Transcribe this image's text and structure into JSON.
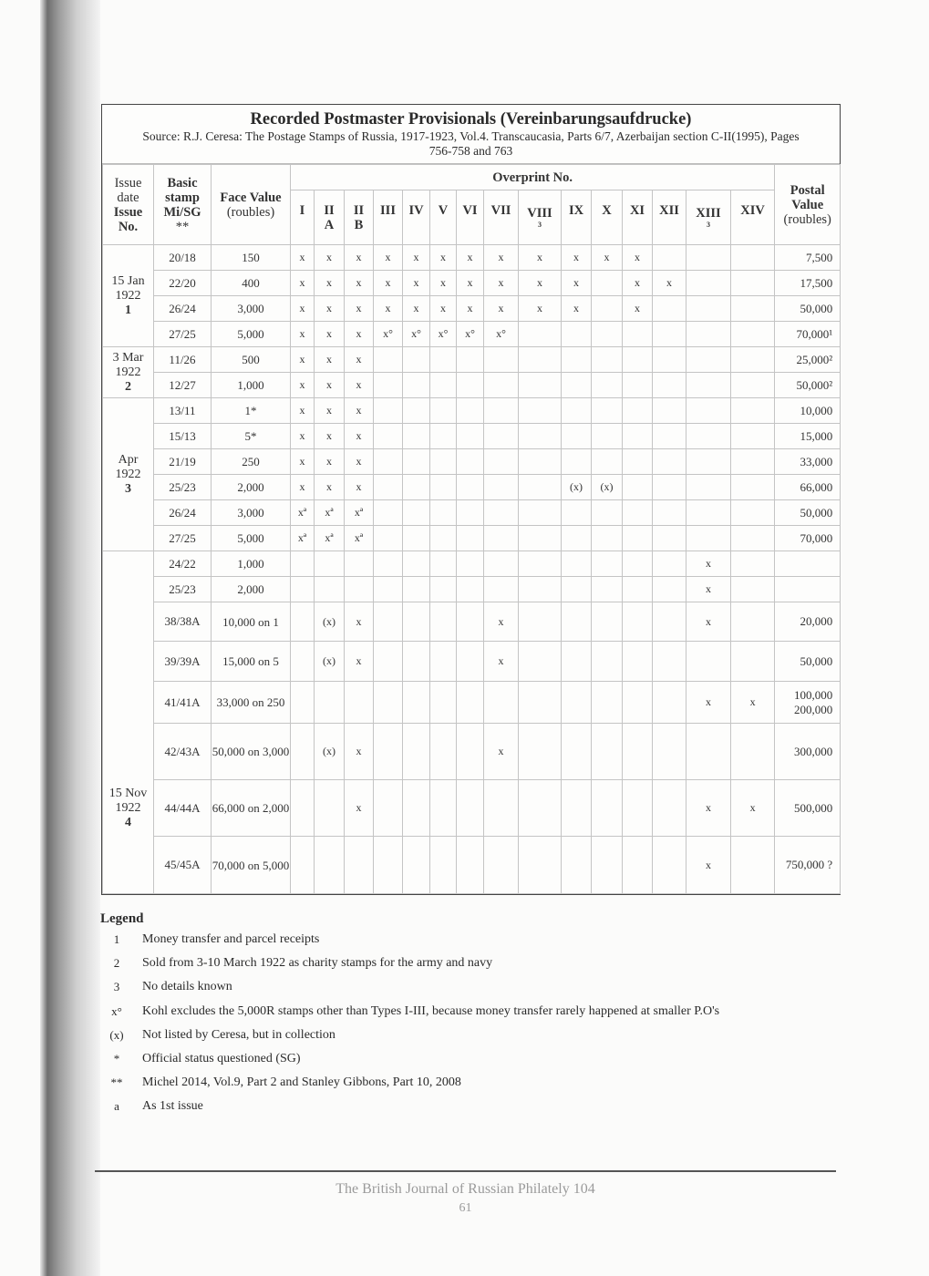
{
  "title": "Recorded Postmaster Provisionals (Vereinbarungsaufdrucke)",
  "source": "Source: R.J. Ceresa: The Postage Stamps of Russia, 1917-1923, Vol.4. Transcaucasia, Parts 6/7, Azerbaijan section C-II(1995), Pages 756-758 and 763",
  "headers": {
    "issue_date": "Issue date",
    "issue_no": "Issue No.",
    "basic_stamp": "Basic stamp Mi/SG",
    "basic_stamp_note": "**",
    "face_value": "Face Value",
    "face_unit": "(roubles)",
    "overprint": "Overprint No.",
    "postal_value": "Postal Value",
    "postal_unit": "(roubles)",
    "overprint_cols": [
      {
        "label": "I"
      },
      {
        "label": "II",
        "sub": "A"
      },
      {
        "label": "II",
        "sub": "B"
      },
      {
        "label": "III"
      },
      {
        "label": "IV"
      },
      {
        "label": "V"
      },
      {
        "label": "VI"
      },
      {
        "label": "VII"
      },
      {
        "label": "VIII",
        "note": "3"
      },
      {
        "label": "IX"
      },
      {
        "label": "X"
      },
      {
        "label": "XI"
      },
      {
        "label": "XII"
      },
      {
        "label": "XIII",
        "note": "3"
      },
      {
        "label": "XIV"
      }
    ]
  },
  "groups": [
    {
      "date": "15 Jan",
      "year": "1922",
      "no": "1",
      "rows": [
        {
          "stamp": "20/18",
          "face": "150",
          "marks": [
            "x",
            "x",
            "x",
            "x",
            "x",
            "x",
            "x",
            "x",
            "x",
            "x",
            "x",
            "x",
            "",
            "",
            ""
          ],
          "postal": "7,500"
        },
        {
          "stamp": "22/20",
          "face": "400",
          "marks": [
            "x",
            "x",
            "x",
            "x",
            "x",
            "x",
            "x",
            "x",
            "x",
            "x",
            "",
            "x",
            "x",
            "",
            ""
          ],
          "postal": "17,500"
        },
        {
          "stamp": "26/24",
          "face": "3,000",
          "marks": [
            "x",
            "x",
            "x",
            "x",
            "x",
            "x",
            "x",
            "x",
            "x",
            "x",
            "",
            "x",
            "",
            "",
            ""
          ],
          "postal": "50,000"
        },
        {
          "stamp": "27/25",
          "face": "5,000",
          "marks": [
            "x",
            "x",
            "x",
            "x°",
            "x°",
            "x°",
            "x°",
            "x°",
            "",
            "",
            "",
            "",
            "",
            "",
            ""
          ],
          "postal": "70,000¹"
        }
      ]
    },
    {
      "date": "3 Mar",
      "year": "1922",
      "no": "2",
      "rows": [
        {
          "stamp": "11/26",
          "face": "500",
          "marks": [
            "x",
            "x",
            "x",
            "",
            "",
            "",
            "",
            "",
            "",
            "",
            "",
            "",
            "",
            "",
            ""
          ],
          "postal": "25,000²"
        },
        {
          "stamp": "12/27",
          "face": "1,000",
          "marks": [
            "x",
            "x",
            "x",
            "",
            "",
            "",
            "",
            "",
            "",
            "",
            "",
            "",
            "",
            "",
            ""
          ],
          "postal": "50,000²"
        }
      ]
    },
    {
      "date": "Apr",
      "year": "1922",
      "no": "3",
      "rows": [
        {
          "stamp": "13/11",
          "face": "1*",
          "marks": [
            "x",
            "x",
            "x",
            "",
            "",
            "",
            "",
            "",
            "",
            "",
            "",
            "",
            "",
            "",
            ""
          ],
          "postal": "10,000"
        },
        {
          "stamp": "15/13",
          "face": "5*",
          "marks": [
            "x",
            "x",
            "x",
            "",
            "",
            "",
            "",
            "",
            "",
            "",
            "",
            "",
            "",
            "",
            ""
          ],
          "postal": "15,000"
        },
        {
          "stamp": "21/19",
          "face": "250",
          "marks": [
            "x",
            "x",
            "x",
            "",
            "",
            "",
            "",
            "",
            "",
            "",
            "",
            "",
            "",
            "",
            ""
          ],
          "postal": "33,000"
        },
        {
          "stamp": "25/23",
          "face": "2,000",
          "marks": [
            "x",
            "x",
            "x",
            "",
            "",
            "",
            "",
            "",
            "",
            "(x)",
            "(x)",
            "",
            "",
            "",
            ""
          ],
          "postal": "66,000"
        },
        {
          "stamp": "26/24",
          "face": "3,000",
          "marks": [
            "xª",
            "xª",
            "xª",
            "",
            "",
            "",
            "",
            "",
            "",
            "",
            "",
            "",
            "",
            "",
            ""
          ],
          "postal": "50,000"
        },
        {
          "stamp": "27/25",
          "face": "5,000",
          "marks": [
            "xª",
            "xª",
            "xª",
            "",
            "",
            "",
            "",
            "",
            "",
            "",
            "",
            "",
            "",
            "",
            ""
          ],
          "postal": "70,000"
        }
      ]
    },
    {
      "date": "15 Nov",
      "year": "1922",
      "no": "4",
      "rows": [
        {
          "stamp": "24/22",
          "face": "1,000",
          "marks": [
            "",
            "",
            "",
            "",
            "",
            "",
            "",
            "",
            "",
            "",
            "",
            "",
            "",
            "x",
            ""
          ],
          "postal": ""
        },
        {
          "stamp": "25/23",
          "face": "2,000",
          "marks": [
            "",
            "",
            "",
            "",
            "",
            "",
            "",
            "",
            "",
            "",
            "",
            "",
            "",
            "x",
            ""
          ],
          "postal": ""
        },
        {
          "stamp": "38/38A",
          "face": "10,000 on 1",
          "marks": [
            "",
            "(x)",
            "x",
            "",
            "",
            "",
            "",
            "x",
            "",
            "",
            "",
            "",
            "",
            "x",
            ""
          ],
          "postal": "20,000"
        },
        {
          "stamp": "39/39A",
          "face": "15,000 on 5",
          "marks": [
            "",
            "(x)",
            "x",
            "",
            "",
            "",
            "",
            "x",
            "",
            "",
            "",
            "",
            "",
            "",
            ""
          ],
          "postal": "50,000"
        },
        {
          "stamp": "41/41A",
          "face": "33,000 on 250",
          "marks": [
            "",
            "",
            "",
            "",
            "",
            "",
            "",
            "",
            "",
            "",
            "",
            "",
            "",
            "x",
            "x"
          ],
          "postal": "100,000 200,000"
        },
        {
          "stamp": "42/43A",
          "face": "50,000 on 3,000",
          "marks": [
            "",
            "(x)",
            "x",
            "",
            "",
            "",
            "",
            "x",
            "",
            "",
            "",
            "",
            "",
            "",
            ""
          ],
          "postal": "300,000"
        },
        {
          "stamp": "44/44A",
          "face": "66,000 on 2,000",
          "marks": [
            "",
            "",
            "x",
            "",
            "",
            "",
            "",
            "",
            "",
            "",
            "",
            "",
            "",
            "x",
            "x"
          ],
          "postal": "500,000"
        },
        {
          "stamp": "45/45A",
          "face": "70,000 on 5,000",
          "marks": [
            "",
            "",
            "",
            "",
            "",
            "",
            "",
            "",
            "",
            "",
            "",
            "",
            "",
            "x",
            ""
          ],
          "postal": "750,000 ?"
        }
      ]
    }
  ],
  "legend": {
    "title": "Legend",
    "items": [
      {
        "symbol": "1",
        "text": "Money transfer and parcel receipts"
      },
      {
        "symbol": "2",
        "text": "Sold from 3-10 March 1922 as charity stamps for the army and navy"
      },
      {
        "symbol": "3",
        "text": "No details known"
      },
      {
        "symbol": "x°",
        "text": "Kohl excludes the 5,000R stamps other than Types I-III, because money transfer rarely happened at smaller P.O's"
      },
      {
        "symbol": "(x)",
        "text": "Not listed by Ceresa, but in collection"
      },
      {
        "symbol": "*",
        "text": "Official status questioned (SG)"
      },
      {
        "symbol": "**",
        "text": "Michel 2014, Vol.9, Part 2 and Stanley Gibbons, Part 10, 2008"
      },
      {
        "symbol": "a",
        "text": "As 1st issue"
      }
    ]
  },
  "footer": {
    "journal": "The British Journal of Russian Philately 104",
    "page": "61"
  }
}
